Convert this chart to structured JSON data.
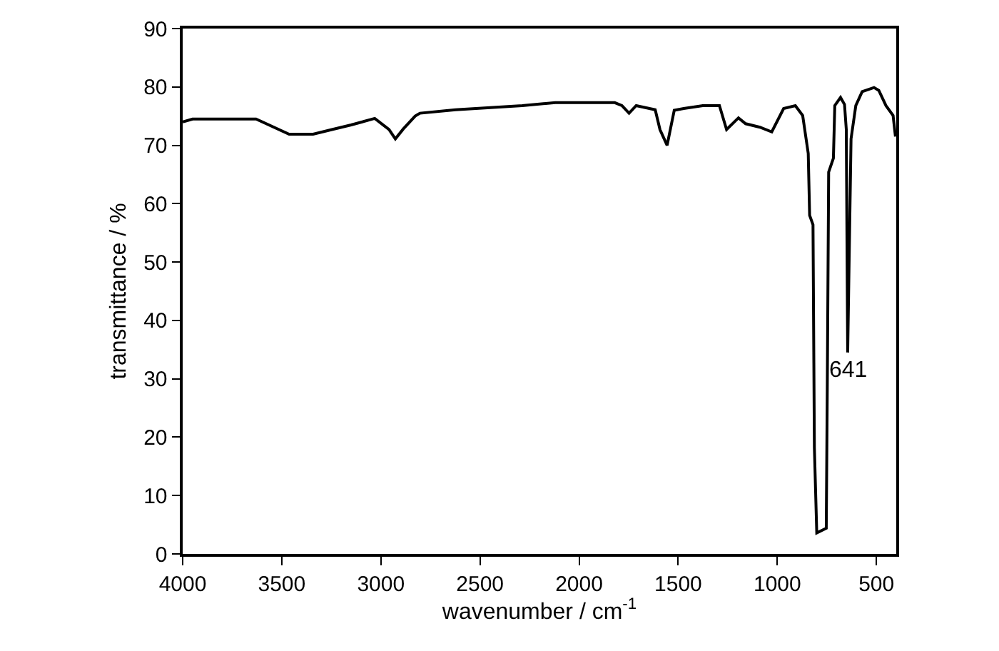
{
  "chart_data": {
    "type": "line",
    "xlabel": "wavenumber / cm$^{-1}$",
    "ylabel": "transmittance / %",
    "x": [
      4000,
      3950,
      3630,
      3463,
      3342,
      3247,
      3150,
      3031,
      2959,
      2927,
      2887,
      2827,
      2803,
      2623,
      2287,
      2120,
      1820,
      1784,
      1748,
      1712,
      1616,
      1592,
      1556,
      1520,
      1472,
      1376,
      1292,
      1256,
      1196,
      1160,
      1088,
      1028,
      968,
      909,
      872,
      844,
      837,
      820,
      813,
      801,
      753,
      748,
      741,
      717,
      710,
      681,
      661,
      652,
      645,
      628,
      604,
      572,
      512,
      488,
      452,
      416,
      404
    ],
    "series": [
      {
        "color": "#000000",
        "values": [
          74,
          74.5,
          74.5,
          71.9,
          71.9,
          72.7,
          73.5,
          74.6,
          72.7,
          71.1,
          72.8,
          75,
          75.5,
          76.1,
          76.8,
          77.3,
          77.3,
          76.8,
          75.5,
          76.8,
          76.1,
          72.7,
          70,
          76,
          76.3,
          76.8,
          76.8,
          72.7,
          74.7,
          73.7,
          73.1,
          72.3,
          76.3,
          76.8,
          75.1,
          68.6,
          58,
          56.4,
          18.2,
          3.6,
          4.4,
          28,
          65.4,
          67.8,
          76.8,
          78.2,
          77,
          72.7,
          34.5,
          71.1,
          76.8,
          79.2,
          79.9,
          79.4,
          76.8,
          75.1,
          71.5
        ]
      }
    ],
    "annotations": [
      {
        "text": "641",
        "x": 641,
        "y": 34.5
      }
    ],
    "xlim": [
      4000,
      400
    ],
    "xticks": [
      4000,
      3500,
      3000,
      2500,
      2000,
      1500,
      1000,
      500
    ],
    "ylim": [
      0,
      90
    ],
    "yticks": [
      0,
      10,
      20,
      30,
      40,
      50,
      60,
      70,
      80,
      90
    ],
    "marker": "none",
    "line_style": "solid"
  }
}
